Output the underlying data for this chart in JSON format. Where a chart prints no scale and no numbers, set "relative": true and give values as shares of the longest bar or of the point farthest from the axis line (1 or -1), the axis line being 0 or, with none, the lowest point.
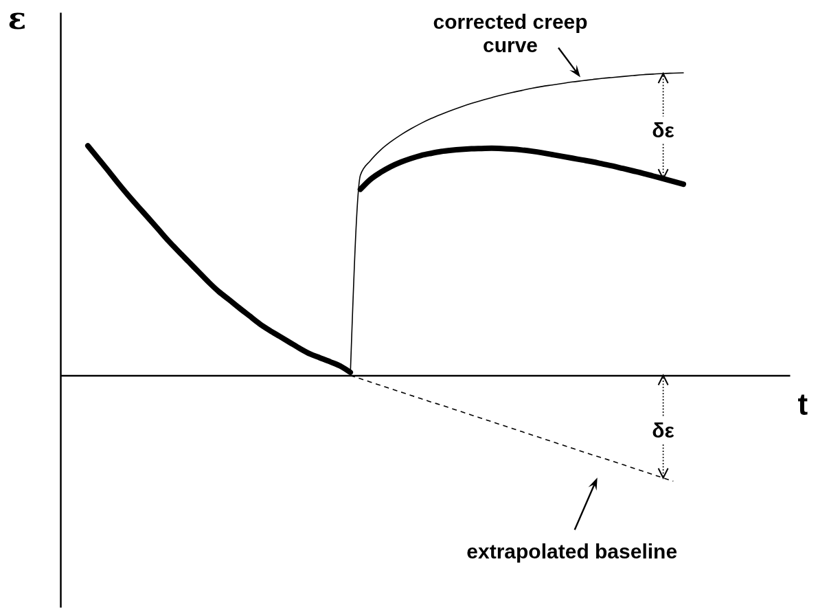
{
  "chart_data": {
    "type": "line",
    "xlabel": "t",
    "ylabel": "ε",
    "relative": true,
    "legend": false,
    "line_style": "solid",
    "annotations": [
      "δε",
      "δε"
    ],
    "categories": [
      null,
      null,
      null,
      null,
      null,
      null,
      null,
      null,
      null,
      null,
      null,
      null,
      null,
      null,
      null,
      null,
      null,
      null,
      null,
      null,
      null,
      null,
      null,
      null,
      null,
      null,
      null,
      null,
      null,
      null,
      null,
      null,
      null,
      null,
      null,
      null,
      null,
      null,
      null,
      null,
      null,
      null,
      null,
      null,
      null,
      null,
      null,
      null,
      null,
      null,
      null,
      null,
      null,
      null,
      null,
      null,
      null,
      null,
      null,
      null
    ],
    "series": [
      {
        "color": "#000000",
        "values": [
          0.759,
          0.718,
          0.677,
          0.635,
          0.595,
          0.557,
          0.52,
          0.482,
          0.444,
          0.409,
          0.375,
          0.341,
          0.307,
          0.276,
          0.25,
          0.223,
          0.197,
          0.171,
          0.149,
          0.129,
          0.109,
          0.089,
          0.071,
          0.058,
          0.045,
          0.031,
          0.01,
          null,
          null,
          null,
          null,
          null,
          null,
          null,
          null,
          null,
          null,
          null,
          null,
          null,
          null,
          null,
          null,
          null,
          null,
          null,
          null,
          null,
          null,
          null,
          null,
          null,
          null,
          null,
          null,
          null,
          null,
          null,
          null,
          null
        ]
      },
      {
        "color": "#000000",
        "values": [
          null,
          null,
          null,
          null,
          null,
          null,
          null,
          null,
          null,
          null,
          null,
          null,
          null,
          null,
          null,
          null,
          null,
          null,
          null,
          null,
          null,
          null,
          null,
          null,
          null,
          null,
          null,
          0.615,
          0.648,
          0.671,
          0.69,
          0.705,
          0.717,
          0.727,
          0.734,
          0.74,
          0.744,
          0.747,
          0.749,
          0.75,
          0.751,
          0.75,
          0.748,
          0.745,
          0.741,
          0.736,
          0.73,
          0.724,
          0.718,
          0.712,
          0.706,
          0.699,
          0.692,
          0.684,
          0.676,
          0.668,
          0.659,
          0.65,
          0.641,
          0.632
        ]
      },
      {
        "name": "corrected creep curve",
        "color": "#000000",
        "values": [
          null,
          null,
          null,
          null,
          null,
          null,
          null,
          null,
          null,
          null,
          null,
          null,
          null,
          null,
          null,
          null,
          null,
          null,
          null,
          null,
          null,
          null,
          null,
          null,
          null,
          null,
          0,
          0.662,
          0.71,
          0.745,
          0.772,
          0.795,
          0.815,
          0.833,
          0.849,
          0.863,
          0.876,
          0.888,
          0.899,
          0.909,
          0.918,
          0.927,
          0.935,
          0.942,
          0.949,
          0.955,
          0.96,
          0.965,
          0.97,
          0.974,
          0.978,
          0.982,
          0.985,
          0.988,
          0.991,
          0.994,
          0.996,
          0.998,
          0.999,
          1
        ]
      },
      {
        "name": "extrapolated baseline",
        "color": "#000000",
        "line_style": "dashed",
        "values": [
          null,
          null,
          null,
          null,
          null,
          null,
          null,
          null,
          null,
          null,
          null,
          null,
          null,
          null,
          null,
          null,
          null,
          null,
          null,
          null,
          null,
          null,
          null,
          null,
          null,
          null,
          0,
          -0.011,
          -0.022,
          -0.033,
          -0.044,
          -0.055,
          -0.066,
          -0.077,
          -0.088,
          -0.098,
          -0.109,
          -0.12,
          -0.131,
          -0.142,
          -0.153,
          -0.164,
          -0.175,
          -0.186,
          -0.197,
          -0.208,
          -0.219,
          -0.23,
          -0.241,
          -0.252,
          -0.263,
          -0.273,
          -0.284,
          -0.295,
          -0.306,
          -0.317,
          -0.328,
          -0.339,
          -0.35,
          null
        ]
      }
    ]
  }
}
